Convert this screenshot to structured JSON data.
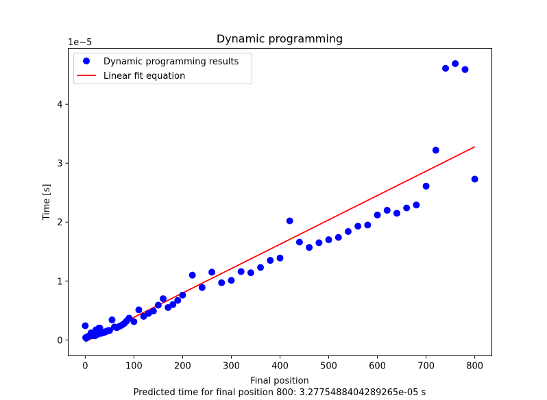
{
  "chart_data": {
    "type": "scatter",
    "title": "Dynamic programming",
    "xlabel": "Final position",
    "ylabel": "Time [s]",
    "offset_text": "1e−5",
    "footer": "Predicted time for final position 800: 3.2775488404289265e-05 s",
    "xlim": [
      -35,
      835
    ],
    "ylim": [
      -0.27,
      4.95
    ],
    "xticks": [
      0,
      100,
      200,
      300,
      400,
      500,
      600,
      700,
      800
    ],
    "yticks": [
      0,
      1,
      2,
      3,
      4
    ],
    "legend_position": "upper left",
    "series": [
      {
        "name": "Dynamic programming results",
        "kind": "scatter",
        "color": "#0000ff",
        "points": [
          [
            0,
            0.24
          ],
          [
            1,
            0.04
          ],
          [
            2,
            0.03
          ],
          [
            4,
            0.05
          ],
          [
            6,
            0.06
          ],
          [
            8,
            0.07
          ],
          [
            10,
            0.08
          ],
          [
            12,
            0.12
          ],
          [
            14,
            0.07
          ],
          [
            16,
            0.08
          ],
          [
            18,
            0.09
          ],
          [
            20,
            0.07
          ],
          [
            22,
            0.17
          ],
          [
            24,
            0.09
          ],
          [
            26,
            0.1
          ],
          [
            28,
            0.2
          ],
          [
            30,
            0.2
          ],
          [
            32,
            0.11
          ],
          [
            34,
            0.12
          ],
          [
            36,
            0.12
          ],
          [
            38,
            0.13
          ],
          [
            40,
            0.13
          ],
          [
            42,
            0.14
          ],
          [
            44,
            0.15
          ],
          [
            46,
            0.15
          ],
          [
            48,
            0.16
          ],
          [
            50,
            0.16
          ],
          [
            55,
            0.34
          ],
          [
            60,
            0.22
          ],
          [
            65,
            0.21
          ],
          [
            70,
            0.23
          ],
          [
            75,
            0.25
          ],
          [
            80,
            0.28
          ],
          [
            85,
            0.32
          ],
          [
            90,
            0.37
          ],
          [
            100,
            0.31
          ],
          [
            110,
            0.51
          ],
          [
            120,
            0.4
          ],
          [
            130,
            0.45
          ],
          [
            140,
            0.49
          ],
          [
            150,
            0.59
          ],
          [
            160,
            0.7
          ],
          [
            170,
            0.55
          ],
          [
            180,
            0.6
          ],
          [
            190,
            0.67
          ],
          [
            200,
            0.76
          ],
          [
            220,
            1.1
          ],
          [
            240,
            0.89
          ],
          [
            260,
            1.15
          ],
          [
            280,
            0.97
          ],
          [
            300,
            1.01
          ],
          [
            320,
            1.16
          ],
          [
            340,
            1.14
          ],
          [
            360,
            1.23
          ],
          [
            380,
            1.35
          ],
          [
            400,
            1.39
          ],
          [
            420,
            2.02
          ],
          [
            440,
            1.66
          ],
          [
            460,
            1.57
          ],
          [
            480,
            1.65
          ],
          [
            500,
            1.7
          ],
          [
            520,
            1.74
          ],
          [
            540,
            1.84
          ],
          [
            560,
            1.93
          ],
          [
            580,
            1.95
          ],
          [
            600,
            2.12
          ],
          [
            620,
            2.2
          ],
          [
            640,
            2.15
          ],
          [
            660,
            2.24
          ],
          [
            680,
            2.29
          ],
          [
            700,
            2.61
          ],
          [
            720,
            3.22
          ],
          [
            740,
            4.61
          ],
          [
            760,
            4.69
          ],
          [
            780,
            4.59
          ],
          [
            800,
            2.73
          ]
        ]
      },
      {
        "name": "Linear fit equation",
        "kind": "line",
        "color": "#ff0000",
        "points": [
          [
            0,
            -0.03
          ],
          [
            800,
            3.2775
          ]
        ]
      }
    ]
  }
}
